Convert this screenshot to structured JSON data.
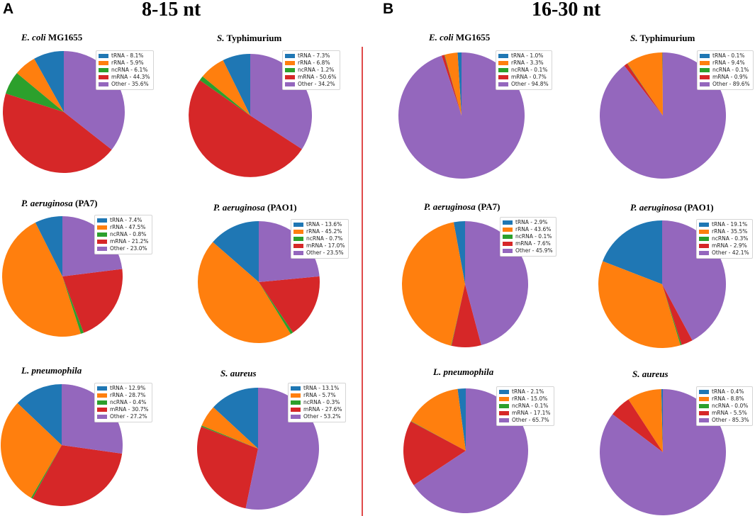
{
  "panels": [
    {
      "letter": "A",
      "heading": "8-15 nt"
    },
    {
      "letter": "B",
      "heading": "16-30 nt"
    }
  ],
  "colors": {
    "tRNA": "#1f77b4",
    "rRNA": "#ff7f0e",
    "ncRNA": "#2ca02c",
    "mRNA": "#d62728",
    "Other": "#9467bd",
    "divider": "#e04a4a"
  },
  "chart_data": [
    {
      "type": "pie",
      "panel": "A",
      "title_italic": "E. coli",
      "title_rest": " MG1655",
      "labels": [
        "tRNA",
        "rRNA",
        "ncRNA",
        "mRNA",
        "Other"
      ],
      "values": [
        8.1,
        5.9,
        6.1,
        44.3,
        35.6
      ],
      "legend": [
        "tRNA - 8.1%",
        "rRNA - 5.9%",
        "ncRNA - 6.1%",
        "mRNA - 44.3%",
        "Other - 35.6%"
      ]
    },
    {
      "type": "pie",
      "panel": "A",
      "title_italic": "S.",
      "title_rest": " Typhimurium",
      "labels": [
        "tRNA",
        "rRNA",
        "ncRNA",
        "mRNA",
        "Other"
      ],
      "values": [
        7.3,
        6.8,
        1.2,
        50.6,
        34.2
      ],
      "legend": [
        "tRNA - 7.3%",
        "rRNA - 6.8%",
        "ncRNA - 1.2%",
        "mRNA - 50.6%",
        "Other - 34.2%"
      ]
    },
    {
      "type": "pie",
      "panel": "A",
      "title_italic": "P. aeruginosa",
      "title_rest": " (PA7)",
      "labels": [
        "tRNA",
        "rRNA",
        "ncRNA",
        "mRNA",
        "Other"
      ],
      "values": [
        7.4,
        47.5,
        0.8,
        21.2,
        23.0
      ],
      "legend": [
        "tRNA - 7.4%",
        "rRNA - 47.5%",
        "ncRNA - 0.8%",
        "mRNA - 21.2%",
        "Other - 23.0%"
      ]
    },
    {
      "type": "pie",
      "panel": "A",
      "title_italic": "P. aeruginosa",
      "title_rest": " (PAO1)",
      "labels": [
        "tRNA",
        "rRNA",
        "ncRNA",
        "mRNA",
        "Other"
      ],
      "values": [
        13.6,
        45.2,
        0.7,
        17.0,
        23.5
      ],
      "legend": [
        "tRNA - 13.6%",
        "rRNA - 45.2%",
        "ncRNA - 0.7%",
        "mRNA - 17.0%",
        "Other - 23.5%"
      ]
    },
    {
      "type": "pie",
      "panel": "A",
      "title_italic": "L. pneumophila",
      "title_rest": "",
      "labels": [
        "tRNA",
        "rRNA",
        "ncRNA",
        "mRNA",
        "Other"
      ],
      "values": [
        12.9,
        28.7,
        0.4,
        30.7,
        27.2
      ],
      "legend": [
        "tRNA - 12.9%",
        "rRNA - 28.7%",
        "ncRNA - 0.4%",
        "mRNA - 30.7%",
        "Other - 27.2%"
      ]
    },
    {
      "type": "pie",
      "panel": "A",
      "title_italic": "S. aureus",
      "title_rest": "",
      "labels": [
        "tRNA",
        "rRNA",
        "ncRNA",
        "mRNA",
        "Other"
      ],
      "values": [
        13.1,
        5.7,
        0.3,
        27.6,
        53.2
      ],
      "legend": [
        "tRNA - 13.1%",
        "rRNA - 5.7%",
        "ncRNA - 0.3%",
        "mRNA - 27.6%",
        "Other - 53.2%"
      ]
    },
    {
      "type": "pie",
      "panel": "B",
      "title_italic": "E. coli",
      "title_rest": " MG1655",
      "labels": [
        "tRNA",
        "rRNA",
        "ncRNA",
        "mRNA",
        "Other"
      ],
      "values": [
        1.0,
        3.3,
        0.1,
        0.7,
        94.8
      ],
      "legend": [
        "tRNA - 1.0%",
        "rRNA - 3.3%",
        "ncRNA - 0.1%",
        "mRNA - 0.7%",
        "Other - 94.8%"
      ]
    },
    {
      "type": "pie",
      "panel": "B",
      "title_italic": "S.",
      "title_rest": " Typhimurium",
      "labels": [
        "tRNA",
        "rRNA",
        "ncRNA",
        "mRNA",
        "Other"
      ],
      "values": [
        0.1,
        9.4,
        0.1,
        0.9,
        89.6
      ],
      "legend": [
        "tRNA - 0.1%",
        "rRNA - 9.4%",
        "ncRNA - 0.1%",
        "mRNA - 0.9%",
        "Other - 89.6%"
      ]
    },
    {
      "type": "pie",
      "panel": "B",
      "title_italic": "P. aeruginosa",
      "title_rest": " (PA7)",
      "labels": [
        "tRNA",
        "rRNA",
        "ncRNA",
        "mRNA",
        "Other"
      ],
      "values": [
        2.9,
        43.6,
        0.1,
        7.6,
        45.9
      ],
      "legend": [
        "tRNA - 2.9%",
        "rRNA - 43.6%",
        "ncRNA - 0.1%",
        "mRNA - 7.6%",
        "Other - 45.9%"
      ]
    },
    {
      "type": "pie",
      "panel": "B",
      "title_italic": "P. aeruginosa",
      "title_rest": " (PAO1)",
      "labels": [
        "tRNA",
        "rRNA",
        "ncRNA",
        "mRNA",
        "Other"
      ],
      "values": [
        19.1,
        35.5,
        0.3,
        2.9,
        42.1
      ],
      "legend": [
        "tRNA - 19.1%",
        "rRNA - 35.5%",
        "ncRNA - 0.3%",
        "mRNA - 2.9%",
        "Other - 42.1%"
      ]
    },
    {
      "type": "pie",
      "panel": "B",
      "title_italic": "L. pneumophila",
      "title_rest": "",
      "labels": [
        "tRNA",
        "rRNA",
        "ncRNA",
        "mRNA",
        "Other"
      ],
      "values": [
        2.1,
        15.0,
        0.1,
        17.1,
        65.7
      ],
      "legend": [
        "tRNA - 2.1%",
        "rRNA - 15.0%",
        "ncRNA - 0.1%",
        "mRNA - 17.1%",
        "Other - 65.7%"
      ]
    },
    {
      "type": "pie",
      "panel": "B",
      "title_italic": "S. aureus",
      "title_rest": "",
      "labels": [
        "tRNA",
        "rRNA",
        "ncRNA",
        "mRNA",
        "Other"
      ],
      "values": [
        0.4,
        8.8,
        0.0,
        5.5,
        85.3
      ],
      "legend": [
        "tRNA - 0.4%",
        "rRNA - 8.8%",
        "ncRNA - 0.0%",
        "mRNA - 5.5%",
        "Other - 85.3%"
      ]
    }
  ]
}
